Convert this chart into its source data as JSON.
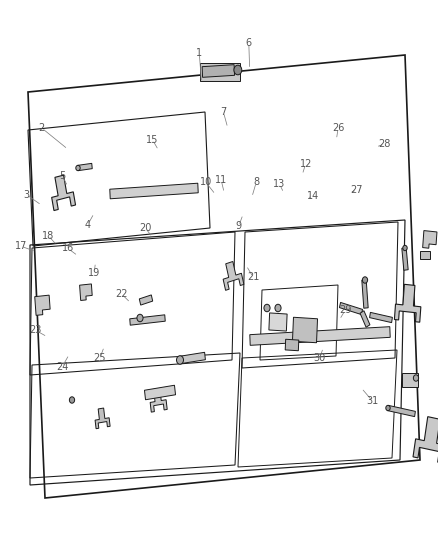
{
  "bg": "#ffffff",
  "lc": "#1a1a1a",
  "gray": "#888888",
  "light_gray": "#cccccc",
  "fig_w": 4.38,
  "fig_h": 5.33,
  "dpi": 100,
  "parts_info": [
    [
      1,
      0.46,
      0.845,
      0.455,
      0.9
    ],
    [
      2,
      0.155,
      0.72,
      0.095,
      0.76
    ],
    [
      3,
      0.095,
      0.615,
      0.06,
      0.635
    ],
    [
      4,
      0.215,
      0.6,
      0.2,
      0.578
    ],
    [
      5,
      0.155,
      0.65,
      0.142,
      0.67
    ],
    [
      6,
      0.57,
      0.87,
      0.568,
      0.92
    ],
    [
      7,
      0.52,
      0.76,
      0.51,
      0.79
    ],
    [
      8,
      0.575,
      0.63,
      0.585,
      0.658
    ],
    [
      9,
      0.555,
      0.598,
      0.545,
      0.576
    ],
    [
      10,
      0.492,
      0.635,
      0.47,
      0.658
    ],
    [
      11,
      0.512,
      0.638,
      0.505,
      0.662
    ],
    [
      12,
      0.69,
      0.672,
      0.698,
      0.693
    ],
    [
      13,
      0.648,
      0.638,
      0.638,
      0.655
    ],
    [
      14,
      0.7,
      0.628,
      0.714,
      0.632
    ],
    [
      15,
      0.362,
      0.718,
      0.348,
      0.738
    ],
    [
      16,
      0.178,
      0.52,
      0.155,
      0.534
    ],
    [
      17,
      0.082,
      0.528,
      0.048,
      0.538
    ],
    [
      18,
      0.13,
      0.54,
      0.11,
      0.558
    ],
    [
      19,
      0.218,
      0.508,
      0.215,
      0.488
    ],
    [
      20,
      0.348,
      0.555,
      0.332,
      0.572
    ],
    [
      21,
      0.562,
      0.502,
      0.578,
      0.48
    ],
    [
      22,
      0.298,
      0.432,
      0.278,
      0.448
    ],
    [
      23,
      0.108,
      0.368,
      0.082,
      0.38
    ],
    [
      24,
      0.158,
      0.335,
      0.142,
      0.312
    ],
    [
      25,
      0.238,
      0.35,
      0.228,
      0.328
    ],
    [
      26,
      0.768,
      0.738,
      0.772,
      0.76
    ],
    [
      27,
      0.798,
      0.638,
      0.815,
      0.644
    ],
    [
      28,
      0.858,
      0.724,
      0.878,
      0.73
    ],
    [
      29,
      0.775,
      0.4,
      0.788,
      0.418
    ],
    [
      30,
      0.738,
      0.348,
      0.73,
      0.328
    ],
    [
      31,
      0.825,
      0.272,
      0.85,
      0.248
    ]
  ]
}
